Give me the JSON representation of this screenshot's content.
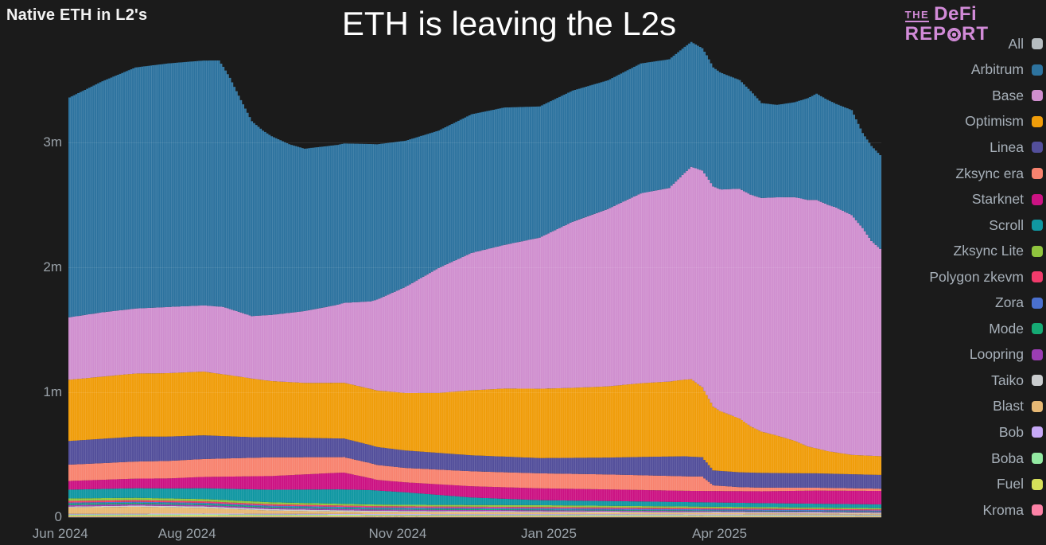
{
  "header": {
    "chart_label": "Native ETH in L2's",
    "title": "ETH is leaving the L2s",
    "logo": {
      "the": "THE",
      "defi": "DeFi",
      "rep": "REP",
      "rt": "RT",
      "color": "#d28bd8"
    }
  },
  "legend": {
    "all": {
      "label": "All",
      "color": "#b6bdc1"
    }
  },
  "chart_data": {
    "type": "bar",
    "stacked": true,
    "title": "Native ETH in L2's",
    "annotation_title": "ETH is leaving the L2s",
    "unit": "ETH (millions)",
    "days": 370,
    "x_domain": [
      "Jun 2024",
      "Jun 2025"
    ],
    "ylim": [
      0,
      3.8
    ],
    "grid": "faint horizontal lines at 1m, 2m, 3m",
    "legend_position": "right",
    "y_ticks": [
      {
        "label": "0",
        "value": 0
      },
      {
        "label": "1m",
        "value": 1
      },
      {
        "label": "2m",
        "value": 2
      },
      {
        "label": "3m",
        "value": 3
      }
    ],
    "x_ticks": [
      {
        "label": "Jun 2024",
        "f": -0.01
      },
      {
        "label": "Aug 2024",
        "f": 0.146
      },
      {
        "label": "Nov 2024",
        "f": 0.405
      },
      {
        "label": "Jan 2025",
        "f": 0.591
      },
      {
        "label": "Apr 2025",
        "f": 0.801
      }
    ],
    "stack_order": "reverse of series list (Kroma at bottom, Arbitrum on top)",
    "series": [
      {
        "name": "Arbitrum",
        "color": "#2d739f",
        "points": [
          [
            0,
            1.76
          ],
          [
            15,
            1.85
          ],
          [
            30,
            1.93
          ],
          [
            45,
            1.95
          ],
          [
            61,
            1.96
          ],
          [
            68,
            1.97
          ],
          [
            73,
            1.85
          ],
          [
            78,
            1.7
          ],
          [
            83,
            1.56
          ],
          [
            88,
            1.48
          ],
          [
            92,
            1.43
          ],
          [
            100,
            1.35
          ],
          [
            107,
            1.3
          ],
          [
            122,
            1.28
          ],
          [
            137,
            1.26
          ],
          [
            153,
            1.17
          ],
          [
            168,
            1.1
          ],
          [
            183,
            1.11
          ],
          [
            198,
            1.1
          ],
          [
            214,
            1.05
          ],
          [
            229,
            1.05
          ],
          [
            245,
            1.03
          ],
          [
            260,
            1.04
          ],
          [
            273,
            1.03
          ],
          [
            283,
            1.0
          ],
          [
            290,
            0.97
          ],
          [
            297,
            0.93
          ],
          [
            305,
            0.87
          ],
          [
            310,
            0.83
          ],
          [
            315,
            0.76
          ],
          [
            322,
            0.74
          ],
          [
            330,
            0.76
          ],
          [
            340,
            0.85
          ],
          [
            349,
            0.83
          ],
          [
            356,
            0.84
          ],
          [
            361,
            0.76
          ],
          [
            365,
            0.76
          ],
          [
            369,
            0.75
          ]
        ]
      },
      {
        "name": "Base",
        "color": "#d08fcf",
        "points": [
          [
            0,
            0.5
          ],
          [
            15,
            0.515
          ],
          [
            30,
            0.52
          ],
          [
            45,
            0.53
          ],
          [
            61,
            0.53
          ],
          [
            70,
            0.54
          ],
          [
            78,
            0.515
          ],
          [
            83,
            0.5
          ],
          [
            92,
            0.53
          ],
          [
            107,
            0.575
          ],
          [
            122,
            0.625
          ],
          [
            137,
            0.7
          ],
          [
            153,
            0.85
          ],
          [
            168,
            1.0
          ],
          [
            183,
            1.1
          ],
          [
            198,
            1.15
          ],
          [
            214,
            1.21
          ],
          [
            229,
            1.33
          ],
          [
            245,
            1.42
          ],
          [
            260,
            1.52
          ],
          [
            273,
            1.55
          ],
          [
            283,
            1.7
          ],
          [
            290,
            1.75
          ],
          [
            297,
            1.78
          ],
          [
            305,
            1.84
          ],
          [
            315,
            1.87
          ],
          [
            330,
            1.95
          ],
          [
            340,
            1.99
          ],
          [
            349,
            1.96
          ],
          [
            356,
            1.92
          ],
          [
            361,
            1.82
          ],
          [
            365,
            1.72
          ],
          [
            369,
            1.66
          ]
        ]
      },
      {
        "name": "Optimism",
        "color": "#f09d0a",
        "points": [
          [
            0,
            0.49
          ],
          [
            30,
            0.505
          ],
          [
            61,
            0.51
          ],
          [
            78,
            0.48
          ],
          [
            92,
            0.45
          ],
          [
            107,
            0.44
          ],
          [
            122,
            0.445
          ],
          [
            137,
            0.45
          ],
          [
            153,
            0.46
          ],
          [
            168,
            0.48
          ],
          [
            183,
            0.52
          ],
          [
            198,
            0.545
          ],
          [
            214,
            0.555
          ],
          [
            229,
            0.56
          ],
          [
            245,
            0.57
          ],
          [
            260,
            0.59
          ],
          [
            273,
            0.6
          ],
          [
            283,
            0.62
          ],
          [
            288,
            0.56
          ],
          [
            296,
            0.48
          ],
          [
            305,
            0.43
          ],
          [
            310,
            0.37
          ],
          [
            315,
            0.33
          ],
          [
            322,
            0.3
          ],
          [
            330,
            0.26
          ],
          [
            336,
            0.215
          ],
          [
            345,
            0.18
          ],
          [
            356,
            0.155
          ],
          [
            369,
            0.15
          ]
        ]
      },
      {
        "name": "Linea",
        "color": "#534f9b",
        "points": [
          [
            0,
            0.19
          ],
          [
            30,
            0.2
          ],
          [
            61,
            0.19
          ],
          [
            83,
            0.165
          ],
          [
            92,
            0.16
          ],
          [
            122,
            0.15
          ],
          [
            153,
            0.14
          ],
          [
            183,
            0.128
          ],
          [
            214,
            0.122
          ],
          [
            245,
            0.135
          ],
          [
            265,
            0.15
          ],
          [
            280,
            0.16
          ],
          [
            288,
            0.155
          ],
          [
            293,
            0.12
          ],
          [
            315,
            0.118
          ],
          [
            340,
            0.115
          ],
          [
            369,
            0.11
          ]
        ]
      },
      {
        "name": "Zksync era",
        "color": "#f8836f",
        "points": [
          [
            0,
            0.13
          ],
          [
            45,
            0.14
          ],
          [
            92,
            0.15
          ],
          [
            122,
            0.125
          ],
          [
            153,
            0.115
          ],
          [
            183,
            0.12
          ],
          [
            245,
            0.12
          ],
          [
            288,
            0.115
          ],
          [
            293,
            0.045
          ],
          [
            305,
            0.032
          ],
          [
            330,
            0.025
          ],
          [
            369,
            0.018
          ]
        ]
      },
      {
        "name": "Starknet",
        "color": "#cc1283",
        "points": [
          [
            0,
            0.07
          ],
          [
            45,
            0.08
          ],
          [
            92,
            0.11
          ],
          [
            125,
            0.135
          ],
          [
            140,
            0.085
          ],
          [
            153,
            0.08
          ],
          [
            183,
            0.09
          ],
          [
            214,
            0.095
          ],
          [
            283,
            0.09
          ],
          [
            315,
            0.095
          ],
          [
            340,
            0.105
          ],
          [
            369,
            0.108
          ]
        ]
      },
      {
        "name": "Scroll",
        "color": "#1097a2",
        "points": [
          [
            0,
            0.07
          ],
          [
            45,
            0.08
          ],
          [
            92,
            0.1
          ],
          [
            122,
            0.115
          ],
          [
            137,
            0.115
          ],
          [
            153,
            0.1
          ],
          [
            168,
            0.08
          ],
          [
            183,
            0.06
          ],
          [
            214,
            0.04
          ],
          [
            245,
            0.038
          ],
          [
            283,
            0.035
          ],
          [
            315,
            0.032
          ],
          [
            369,
            0.03
          ]
        ]
      },
      {
        "name": "Zksync Lite",
        "color": "#90c43e",
        "points": [
          [
            0,
            0.02
          ],
          [
            61,
            0.018
          ],
          [
            153,
            0.012
          ],
          [
            214,
            0.015
          ],
          [
            369,
            0.01
          ]
        ]
      },
      {
        "name": "Polygon zkevm",
        "color": "#f03b6b",
        "points": [
          [
            0,
            0.013
          ],
          [
            153,
            0.01
          ],
          [
            369,
            0.008
          ]
        ]
      },
      {
        "name": "Zora",
        "color": "#4a70cf",
        "points": [
          [
            0,
            0.008
          ],
          [
            214,
            0.01
          ],
          [
            369,
            0.008
          ]
        ]
      },
      {
        "name": "Mode",
        "color": "#15aa74",
        "points": [
          [
            0,
            0.012
          ],
          [
            92,
            0.008
          ],
          [
            214,
            0.006
          ],
          [
            369,
            0.004
          ]
        ]
      },
      {
        "name": "Loopring",
        "color": "#9b3db3",
        "points": [
          [
            0,
            0.012
          ],
          [
            153,
            0.01
          ],
          [
            369,
            0.006
          ]
        ]
      },
      {
        "name": "Taiko",
        "color": "#c9ccce",
        "points": [
          [
            0,
            0.008
          ],
          [
            61,
            0.012
          ],
          [
            214,
            0.01
          ],
          [
            369,
            0.008
          ]
        ]
      },
      {
        "name": "Blast",
        "color": "#e7b975",
        "points": [
          [
            0,
            0.05
          ],
          [
            30,
            0.055
          ],
          [
            61,
            0.045
          ],
          [
            92,
            0.025
          ],
          [
            137,
            0.015
          ],
          [
            214,
            0.012
          ],
          [
            369,
            0.008
          ]
        ]
      },
      {
        "name": "Bob",
        "color": "#c7a9f7",
        "points": [
          [
            0,
            0.006
          ],
          [
            214,
            0.008
          ],
          [
            369,
            0.006
          ]
        ]
      },
      {
        "name": "Boba",
        "color": "#93e9a2",
        "points": [
          [
            0,
            0.007
          ],
          [
            369,
            0.005
          ]
        ]
      },
      {
        "name": "Fuel",
        "color": "#d6e05a",
        "points": [
          [
            0,
            0.01
          ],
          [
            61,
            0.012
          ],
          [
            150,
            0.008
          ],
          [
            369,
            0.006
          ]
        ]
      },
      {
        "name": "Kroma",
        "color": "#fc82a6",
        "points": [
          [
            0,
            0.004
          ],
          [
            369,
            0.003
          ]
        ]
      }
    ]
  }
}
